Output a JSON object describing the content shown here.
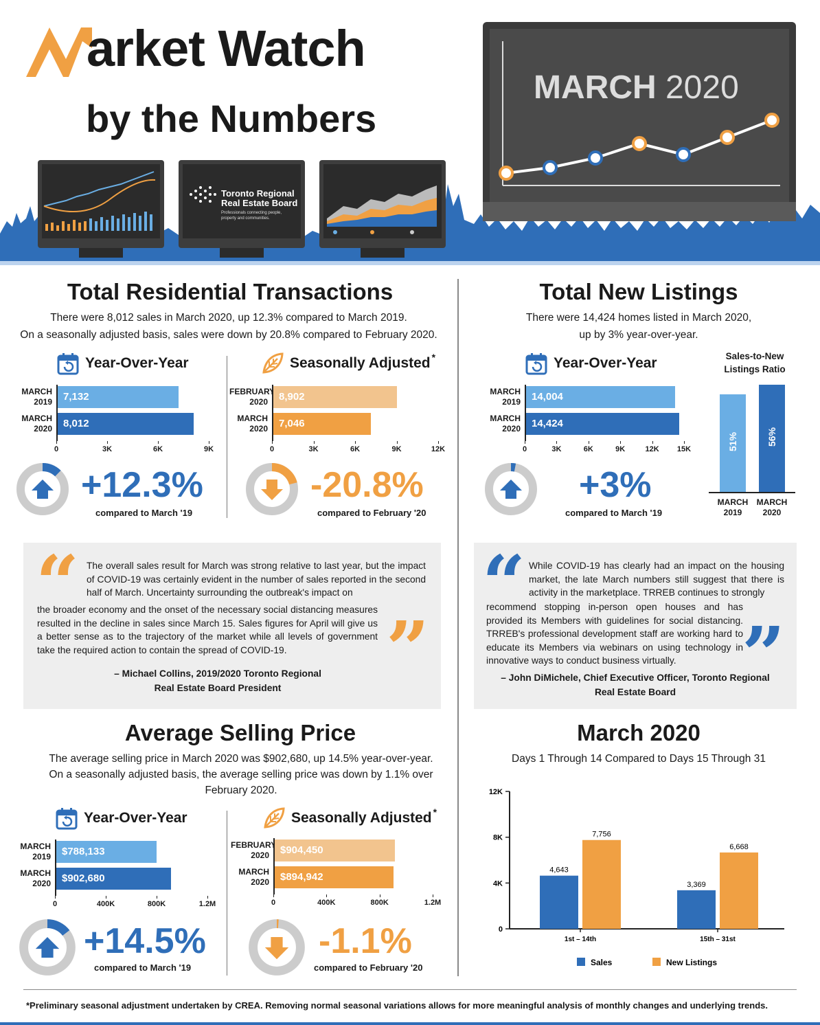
{
  "header": {
    "title_initial": "M",
    "title_rest": "arket Watch",
    "subtitle": "by the Numbers",
    "board_name_1": "Toronto Regional",
    "board_name_2": "Real Estate Board",
    "board_tagline": "Professionals connecting people, property and communities.",
    "month_label": "MARCH",
    "year_label": "2020"
  },
  "colors": {
    "blue": "#2f6eb8",
    "light_blue": "#6aaee4",
    "orange": "#f0a043",
    "light_orange": "#f2c48e",
    "grey": "#cccccc",
    "dark": "#1a1a1a"
  },
  "transactions": {
    "title": "Total Residential Transactions",
    "desc_1": "There were 8,012 sales in March 2020, up 12.3% compared to March 2019.",
    "desc_2": "On a seasonally adjusted basis, sales were down by 20.8% compared to February 2020.",
    "yoy_head": "Year-Over-Year",
    "sa_head": "Seasonally Adjusted",
    "sa_mark": "*",
    "yoy_pct": "+12.3%",
    "yoy_cmp": "compared to March '19",
    "sa_pct": "-20.8%",
    "sa_cmp": "compared to February '20"
  },
  "listings": {
    "title": "Total New Listings",
    "desc_1": "There were 14,424 homes listed in March 2020,",
    "desc_2": "up by 3% year-over-year.",
    "yoy_head": "Year-Over-Year",
    "yoy_pct": "+3%",
    "yoy_cmp": "compared to March '19",
    "ratio_title_1": "Sales-to-New",
    "ratio_title_2": "Listings Ratio"
  },
  "quote1": {
    "text_a": "The overall sales result for March was strong relative to last year, but the impact of COVID-19 was certainly evident in the number of sales reported in the second half of March. Uncertainty surrounding the outbreak's impact on",
    "text_b": "the broader economy and the onset of the necessary social distancing measures resulted in the decline in sales since March 15. Sales figures for April will give us a better sense as to the trajectory of the market while all levels of government take the required action to contain the spread of COVID-19.",
    "author_1": "– Michael Collins, 2019/2020 Toronto Regional",
    "author_2": "Real Estate Board President"
  },
  "quote2": {
    "text_a": "While COVID-19 has clearly had an impact on the housing market, the late March numbers still suggest that there is activity in the marketplace. TRREB continues to strongly",
    "text_b": "recommend stopping in-person open houses and has provided its Members with guidelines for social distancing. TRREB's professional development staff are working hard to educate its Members via webinars on using technology in innovative ways to conduct business virtually.",
    "author_1": "– John DiMichele, Chief Executive Officer, Toronto Regional",
    "author_2": "Real Estate Board"
  },
  "price": {
    "title": "Average Selling Price",
    "desc_1": "The average selling price in March 2020 was $902,680, up 14.5% year-over-year.",
    "desc_2": "On a seasonally adjusted basis, the average selling price was down by 1.1% over",
    "desc_3": "February 2020.",
    "yoy_head": "Year-Over-Year",
    "sa_head": "Seasonally Adjusted",
    "sa_mark": "*",
    "yoy_pct": "+14.5%",
    "yoy_cmp": "compared to March '19",
    "sa_pct": "-1.1%",
    "sa_cmp": "compared to February '20"
  },
  "halves": {
    "title": "March 2020",
    "desc": "Days 1 Through 14 Compared to Days 15 Through 31",
    "legend_sales": "Sales",
    "legend_listings": "New Listings"
  },
  "footnote": "*Preliminary seasonal adjustment undertaken by CREA. Removing normal seasonal variations allows for more meaningful analysis of monthly changes and underlying trends.",
  "chart_data": [
    {
      "id": "trans_yoy",
      "type": "bar",
      "orientation": "horizontal",
      "categories": [
        [
          "MARCH",
          "2019"
        ],
        [
          "MARCH",
          "2020"
        ]
      ],
      "values": [
        7132,
        8012
      ],
      "labels": [
        "7,132",
        "8,012"
      ],
      "xlim": [
        0,
        9000
      ],
      "ticks": [
        0,
        3000,
        6000,
        9000
      ],
      "tick_labels": [
        "0",
        "3K",
        "6K",
        "9K"
      ],
      "colors": [
        "#6aaee4",
        "#2f6eb8"
      ]
    },
    {
      "id": "trans_sa",
      "type": "bar",
      "orientation": "horizontal",
      "categories": [
        [
          "FEBRUARY",
          "2020"
        ],
        [
          "MARCH",
          "2020"
        ]
      ],
      "values": [
        8902,
        7046
      ],
      "labels": [
        "8,902",
        "7,046"
      ],
      "xlim": [
        0,
        12000
      ],
      "ticks": [
        0,
        3000,
        6000,
        9000,
        12000
      ],
      "tick_labels": [
        "0",
        "3K",
        "6K",
        "9K",
        "12K"
      ],
      "colors": [
        "#f2c48e",
        "#f0a043"
      ]
    },
    {
      "id": "list_yoy",
      "type": "bar",
      "orientation": "horizontal",
      "categories": [
        [
          "MARCH",
          "2019"
        ],
        [
          "MARCH",
          "2020"
        ]
      ],
      "values": [
        14004,
        14424
      ],
      "labels": [
        "14,004",
        "14,424"
      ],
      "xlim": [
        0,
        15000
      ],
      "ticks": [
        0,
        3000,
        6000,
        9000,
        12000,
        15000
      ],
      "tick_labels": [
        "0",
        "3K",
        "6K",
        "9K",
        "12K",
        "15K"
      ],
      "colors": [
        "#6aaee4",
        "#2f6eb8"
      ]
    },
    {
      "id": "price_yoy",
      "type": "bar",
      "orientation": "horizontal",
      "categories": [
        [
          "MARCH",
          "2019"
        ],
        [
          "MARCH",
          "2020"
        ]
      ],
      "values": [
        788133,
        902680
      ],
      "labels": [
        "$788,133",
        "$902,680"
      ],
      "xlim": [
        0,
        1200000
      ],
      "ticks": [
        0,
        400000,
        800000,
        1200000
      ],
      "tick_labels": [
        "0",
        "400K",
        "800K",
        "1.2M"
      ],
      "colors": [
        "#6aaee4",
        "#2f6eb8"
      ]
    },
    {
      "id": "price_sa",
      "type": "bar",
      "orientation": "horizontal",
      "categories": [
        [
          "FEBRUARY",
          "2020"
        ],
        [
          "MARCH",
          "2020"
        ]
      ],
      "values": [
        904450,
        894942
      ],
      "labels": [
        "$904,450",
        "$894,942"
      ],
      "xlim": [
        0,
        1200000
      ],
      "ticks": [
        0,
        400000,
        800000,
        1200000
      ],
      "tick_labels": [
        "0",
        "400K",
        "800K",
        "1.2M"
      ],
      "colors": [
        "#f2c48e",
        "#f0a043"
      ]
    },
    {
      "id": "ratio",
      "type": "bar",
      "orientation": "vertical",
      "categories": [
        [
          "MARCH",
          "2019"
        ],
        [
          "MARCH",
          "2020"
        ]
      ],
      "values": [
        51,
        56
      ],
      "labels": [
        "51%",
        "56%"
      ],
      "colors": [
        "#6aaee4",
        "#2f6eb8"
      ]
    },
    {
      "id": "halves",
      "type": "bar",
      "orientation": "vertical",
      "categories": [
        "1st – 14th",
        "15th – 31st"
      ],
      "series": [
        {
          "name": "Sales",
          "values": [
            4643,
            3369
          ],
          "labels": [
            "4,643",
            "3,369"
          ],
          "color": "#2f6eb8"
        },
        {
          "name": "New Listings",
          "values": [
            7756,
            6668
          ],
          "labels": [
            "7,756",
            "6,668"
          ],
          "color": "#f0a043"
        }
      ],
      "ylim": [
        0,
        12000
      ],
      "ticks": [
        0,
        4000,
        8000,
        12000
      ],
      "tick_labels": [
        "0",
        "4K",
        "8K",
        "12K"
      ]
    },
    {
      "id": "donut_trans_yoy",
      "type": "pie",
      "values": [
        12.3
      ],
      "direction": "up",
      "color": "#2f6eb8"
    },
    {
      "id": "donut_trans_sa",
      "type": "pie",
      "values": [
        20.8
      ],
      "direction": "down",
      "color": "#f0a043"
    },
    {
      "id": "donut_list_yoy",
      "type": "pie",
      "values": [
        3
      ],
      "direction": "up",
      "color": "#2f6eb8"
    },
    {
      "id": "donut_price_yoy",
      "type": "pie",
      "values": [
        14.5
      ],
      "direction": "up",
      "color": "#2f6eb8"
    },
    {
      "id": "donut_price_sa",
      "type": "pie",
      "values": [
        1.1
      ],
      "direction": "down",
      "color": "#f0a043"
    }
  ]
}
